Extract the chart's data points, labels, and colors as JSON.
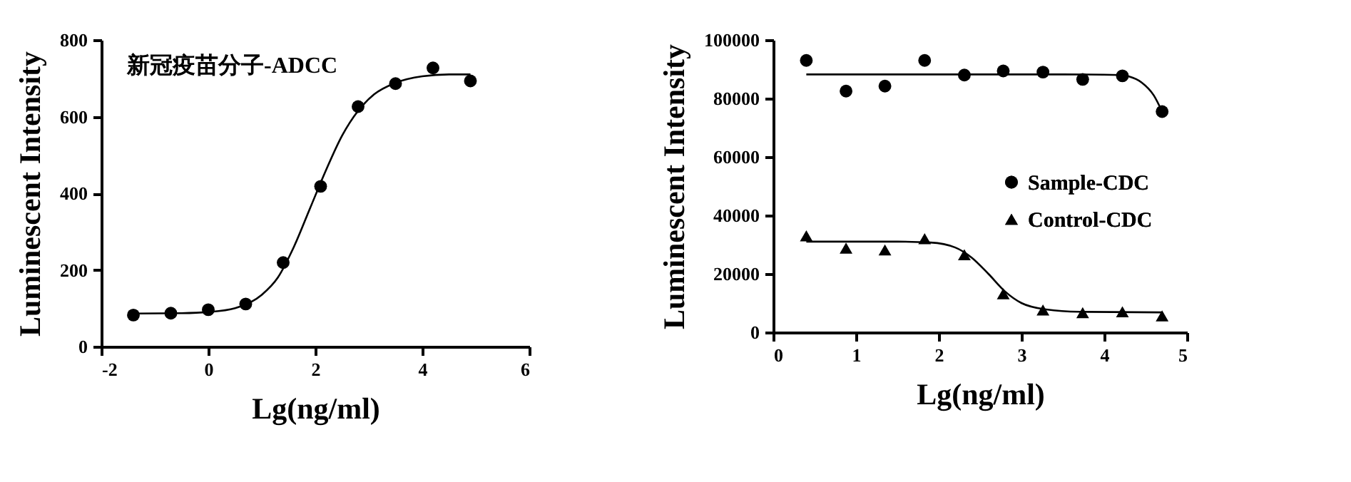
{
  "chart_data": [
    {
      "type": "scatter",
      "annotations": [
        "新冠疫苗分子-ADCC"
      ],
      "xlabel": "Lg(ng/ml)",
      "ylabel": "Luminescent Intensity",
      "xlim": [
        -2,
        6
      ],
      "xticks": [
        -2,
        0,
        2,
        4,
        6
      ],
      "ylim": [
        0,
        800
      ],
      "yticks": [
        0,
        200,
        400,
        600,
        800
      ],
      "grid": false,
      "legend": false,
      "series": [
        {
          "marker": "circle",
          "color": "#000000",
          "x": [
            -1.4,
            -0.7,
            0,
            0.7,
            1.4,
            2.1,
            2.8,
            3.5,
            4.2,
            4.9
          ],
          "values": [
            82,
            87,
            96,
            111,
            219,
            418,
            626,
            686,
            727,
            693
          ]
        },
        {
          "type": "line",
          "marker": "none",
          "color": "#000000",
          "x": [
            -1.4,
            -0.5,
            0,
            0.5,
            1.0,
            1.3,
            1.6,
            1.9,
            2.2,
            2.5,
            2.8,
            3.1,
            3.5,
            4.0,
            4.5,
            4.9
          ],
          "values": [
            86,
            87,
            90,
            100,
            135,
            180,
            260,
            360,
            460,
            550,
            615,
            658,
            688,
            705,
            710,
            710
          ]
        }
      ]
    },
    {
      "type": "scatter",
      "xlabel": "Lg(ng/ml)",
      "ylabel": "Luminescent Intensity",
      "xlim": [
        0,
        5
      ],
      "xticks": [
        0,
        1,
        2,
        3,
        4,
        5
      ],
      "ylim": [
        0,
        100000
      ],
      "yticks": [
        0,
        20000,
        40000,
        60000,
        80000,
        100000
      ],
      "grid": false,
      "legend": "right",
      "series": [
        {
          "name": "Sample-CDC",
          "marker": "circle",
          "color": "#000000",
          "x": [
            0.4,
            0.88,
            1.35,
            1.83,
            2.31,
            2.78,
            3.26,
            3.74,
            4.22,
            4.7
          ],
          "values": [
            93000,
            82500,
            84200,
            93000,
            88000,
            89400,
            89000,
            86500,
            87700,
            75500
          ]
        },
        {
          "name": "Control-CDC",
          "marker": "triangle",
          "color": "#000000",
          "x": [
            0.4,
            0.88,
            1.35,
            1.83,
            2.31,
            2.78,
            3.26,
            3.74,
            4.22,
            4.7
          ],
          "values": [
            33000,
            28800,
            28200,
            32000,
            26500,
            13200,
            7600,
            6700,
            7000,
            5600
          ]
        },
        {
          "type": "line",
          "marker": "none",
          "color": "#000000",
          "x": [
            0.4,
            1.5,
            2.5,
            3.5,
            4.2,
            4.3,
            4.45,
            4.6,
            4.7
          ],
          "values": [
            88200,
            88200,
            88200,
            88200,
            88000,
            87500,
            85500,
            81000,
            75500
          ]
        },
        {
          "type": "line",
          "marker": "none",
          "color": "#000000",
          "x": [
            0.4,
            1.5,
            1.9,
            2.2,
            2.4,
            2.6,
            2.8,
            3.0,
            3.3,
            3.7,
            4.7
          ],
          "values": [
            31000,
            31000,
            30700,
            29000,
            25500,
            20000,
            14000,
            10000,
            7800,
            7000,
            6800
          ]
        }
      ]
    }
  ]
}
